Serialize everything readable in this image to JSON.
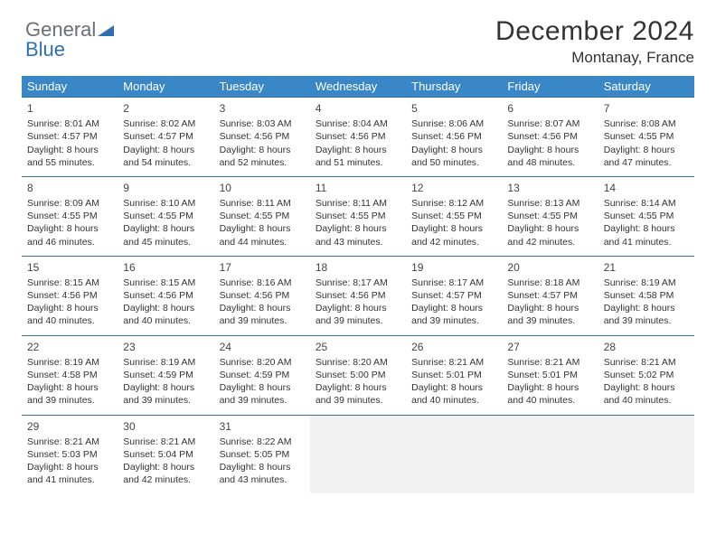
{
  "logo": {
    "text1": "General",
    "text2": "Blue"
  },
  "header": {
    "month_title": "December 2024",
    "location": "Montanay, France"
  },
  "colors": {
    "header_bg": "#3a87c7",
    "header_text": "#ffffff",
    "row_border": "#3a6b96",
    "empty_bg": "#f2f2f2",
    "logo_gray": "#6b6e73",
    "logo_blue": "#2f6fb3"
  },
  "day_headers": [
    "Sunday",
    "Monday",
    "Tuesday",
    "Wednesday",
    "Thursday",
    "Friday",
    "Saturday"
  ],
  "weeks": [
    [
      {
        "n": "1",
        "sunrise": "8:01 AM",
        "sunset": "4:57 PM",
        "daylight": "8 hours and 55 minutes."
      },
      {
        "n": "2",
        "sunrise": "8:02 AM",
        "sunset": "4:57 PM",
        "daylight": "8 hours and 54 minutes."
      },
      {
        "n": "3",
        "sunrise": "8:03 AM",
        "sunset": "4:56 PM",
        "daylight": "8 hours and 52 minutes."
      },
      {
        "n": "4",
        "sunrise": "8:04 AM",
        "sunset": "4:56 PM",
        "daylight": "8 hours and 51 minutes."
      },
      {
        "n": "5",
        "sunrise": "8:06 AM",
        "sunset": "4:56 PM",
        "daylight": "8 hours and 50 minutes."
      },
      {
        "n": "6",
        "sunrise": "8:07 AM",
        "sunset": "4:56 PM",
        "daylight": "8 hours and 48 minutes."
      },
      {
        "n": "7",
        "sunrise": "8:08 AM",
        "sunset": "4:55 PM",
        "daylight": "8 hours and 47 minutes."
      }
    ],
    [
      {
        "n": "8",
        "sunrise": "8:09 AM",
        "sunset": "4:55 PM",
        "daylight": "8 hours and 46 minutes."
      },
      {
        "n": "9",
        "sunrise": "8:10 AM",
        "sunset": "4:55 PM",
        "daylight": "8 hours and 45 minutes."
      },
      {
        "n": "10",
        "sunrise": "8:11 AM",
        "sunset": "4:55 PM",
        "daylight": "8 hours and 44 minutes."
      },
      {
        "n": "11",
        "sunrise": "8:11 AM",
        "sunset": "4:55 PM",
        "daylight": "8 hours and 43 minutes."
      },
      {
        "n": "12",
        "sunrise": "8:12 AM",
        "sunset": "4:55 PM",
        "daylight": "8 hours and 42 minutes."
      },
      {
        "n": "13",
        "sunrise": "8:13 AM",
        "sunset": "4:55 PM",
        "daylight": "8 hours and 42 minutes."
      },
      {
        "n": "14",
        "sunrise": "8:14 AM",
        "sunset": "4:55 PM",
        "daylight": "8 hours and 41 minutes."
      }
    ],
    [
      {
        "n": "15",
        "sunrise": "8:15 AM",
        "sunset": "4:56 PM",
        "daylight": "8 hours and 40 minutes."
      },
      {
        "n": "16",
        "sunrise": "8:15 AM",
        "sunset": "4:56 PM",
        "daylight": "8 hours and 40 minutes."
      },
      {
        "n": "17",
        "sunrise": "8:16 AM",
        "sunset": "4:56 PM",
        "daylight": "8 hours and 39 minutes."
      },
      {
        "n": "18",
        "sunrise": "8:17 AM",
        "sunset": "4:56 PM",
        "daylight": "8 hours and 39 minutes."
      },
      {
        "n": "19",
        "sunrise": "8:17 AM",
        "sunset": "4:57 PM",
        "daylight": "8 hours and 39 minutes."
      },
      {
        "n": "20",
        "sunrise": "8:18 AM",
        "sunset": "4:57 PM",
        "daylight": "8 hours and 39 minutes."
      },
      {
        "n": "21",
        "sunrise": "8:19 AM",
        "sunset": "4:58 PM",
        "daylight": "8 hours and 39 minutes."
      }
    ],
    [
      {
        "n": "22",
        "sunrise": "8:19 AM",
        "sunset": "4:58 PM",
        "daylight": "8 hours and 39 minutes."
      },
      {
        "n": "23",
        "sunrise": "8:19 AM",
        "sunset": "4:59 PM",
        "daylight": "8 hours and 39 minutes."
      },
      {
        "n": "24",
        "sunrise": "8:20 AM",
        "sunset": "4:59 PM",
        "daylight": "8 hours and 39 minutes."
      },
      {
        "n": "25",
        "sunrise": "8:20 AM",
        "sunset": "5:00 PM",
        "daylight": "8 hours and 39 minutes."
      },
      {
        "n": "26",
        "sunrise": "8:21 AM",
        "sunset": "5:01 PM",
        "daylight": "8 hours and 40 minutes."
      },
      {
        "n": "27",
        "sunrise": "8:21 AM",
        "sunset": "5:01 PM",
        "daylight": "8 hours and 40 minutes."
      },
      {
        "n": "28",
        "sunrise": "8:21 AM",
        "sunset": "5:02 PM",
        "daylight": "8 hours and 40 minutes."
      }
    ],
    [
      {
        "n": "29",
        "sunrise": "8:21 AM",
        "sunset": "5:03 PM",
        "daylight": "8 hours and 41 minutes."
      },
      {
        "n": "30",
        "sunrise": "8:21 AM",
        "sunset": "5:04 PM",
        "daylight": "8 hours and 42 minutes."
      },
      {
        "n": "31",
        "sunrise": "8:22 AM",
        "sunset": "5:05 PM",
        "daylight": "8 hours and 43 minutes."
      },
      null,
      null,
      null,
      null
    ]
  ],
  "labels": {
    "sunrise": "Sunrise: ",
    "sunset": "Sunset: ",
    "daylight": "Daylight: "
  }
}
